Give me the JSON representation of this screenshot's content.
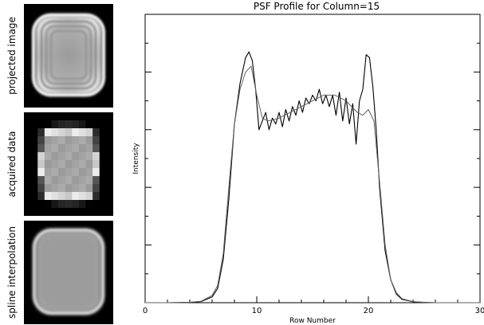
{
  "panels": [
    {
      "label": "projected image"
    },
    {
      "label": "acquired data"
    },
    {
      "label": "spline interpolation"
    }
  ],
  "chart_data": {
    "type": "line",
    "title": "PSF Profile for Column=15",
    "xlabel": "Row Number",
    "ylabel": "Intensity",
    "xlim": [
      0,
      30
    ],
    "ylim": [
      0,
      1.0
    ],
    "x_ticks": [
      0,
      10,
      20,
      30
    ],
    "x_tick_labels": [
      "0",
      "10",
      "20",
      "30"
    ],
    "y_ticks_labeled": false,
    "grid": false,
    "legend": "none",
    "series": [
      {
        "color": "#000000",
        "x": [
          0,
          2,
          4,
          5,
          6,
          6.5,
          7,
          7.5,
          8,
          8.5,
          9,
          9.3,
          9.6,
          9.9,
          10.2,
          10.5,
          10.8,
          11.1,
          11.4,
          11.7,
          12,
          12.3,
          12.6,
          12.9,
          13.2,
          13.5,
          13.8,
          14.1,
          14.4,
          14.7,
          15,
          15.3,
          15.6,
          15.9,
          16.2,
          16.5,
          16.8,
          17.1,
          17.4,
          17.7,
          18,
          18.3,
          18.6,
          18.9,
          19.2,
          19.5,
          19.8,
          20.1,
          20.4,
          20.7,
          21,
          21.5,
          22,
          22.5,
          23,
          24,
          25,
          26,
          28,
          30
        ],
        "y": [
          0,
          0,
          0.001,
          0.004,
          0.02,
          0.05,
          0.15,
          0.36,
          0.62,
          0.76,
          0.85,
          0.87,
          0.84,
          0.74,
          0.6,
          0.63,
          0.66,
          0.6,
          0.64,
          0.62,
          0.66,
          0.61,
          0.67,
          0.63,
          0.68,
          0.65,
          0.7,
          0.66,
          0.71,
          0.69,
          0.72,
          0.7,
          0.74,
          0.69,
          0.72,
          0.68,
          0.72,
          0.65,
          0.73,
          0.63,
          0.71,
          0.62,
          0.69,
          0.55,
          0.7,
          0.74,
          0.86,
          0.85,
          0.75,
          0.6,
          0.4,
          0.18,
          0.08,
          0.03,
          0.012,
          0.003,
          0.001,
          0,
          0,
          0
        ]
      },
      {
        "color": "#606060",
        "x": [
          0,
          2,
          4,
          5,
          6,
          6.5,
          7,
          7.5,
          8,
          8.5,
          9,
          9.5,
          10,
          10.5,
          11,
          12,
          13,
          14,
          15,
          16,
          17,
          18,
          19,
          19.5,
          20,
          20.5,
          21,
          21.5,
          22,
          22.5,
          23,
          24,
          25,
          26,
          28,
          30
        ],
        "y": [
          0,
          0,
          0.001,
          0.005,
          0.025,
          0.06,
          0.17,
          0.4,
          0.62,
          0.74,
          0.8,
          0.82,
          0.72,
          0.64,
          0.63,
          0.64,
          0.66,
          0.68,
          0.7,
          0.72,
          0.72,
          0.7,
          0.66,
          0.65,
          0.67,
          0.63,
          0.42,
          0.2,
          0.08,
          0.035,
          0.014,
          0.004,
          0.001,
          0,
          0,
          0
        ]
      }
    ]
  }
}
